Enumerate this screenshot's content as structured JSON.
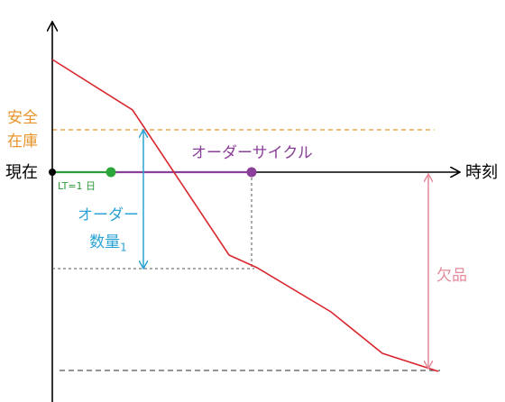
{
  "labels": {
    "safety_stock_line1": "安全",
    "safety_stock_line2": "在庫",
    "now": "現在",
    "time": "時刻",
    "lead_time": "LT=1 日",
    "order_cycle": "オーダーサイクル",
    "order_qty_line1": "オーダー",
    "order_qty_line2": "数量",
    "order_qty_sub": "1",
    "shortage": "欠品"
  },
  "colors": {
    "inventory_line": "#d9262e",
    "safety_stock": "#e8932a",
    "lead_time": "#2a9a3a",
    "order_cycle": "#8a3f98",
    "order_qty": "#2ba3d6",
    "shortage": "#e48a9a",
    "axis": "#000000",
    "guide": "#555555"
  }
}
